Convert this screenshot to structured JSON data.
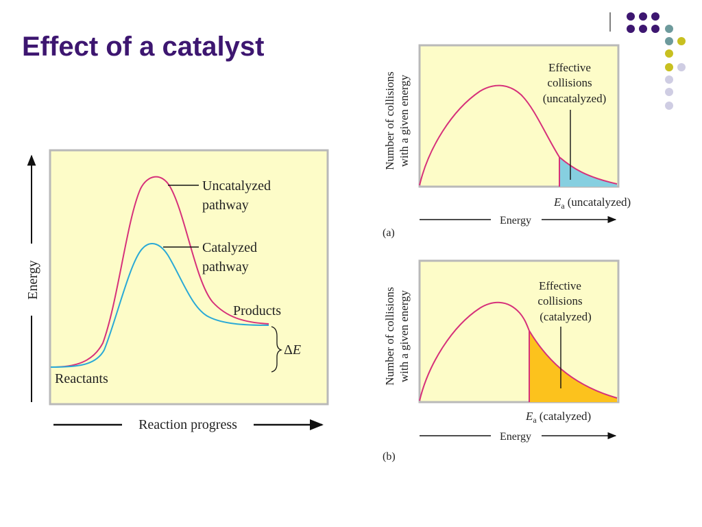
{
  "slide": {
    "title": "Effect of a catalyst",
    "accent_color": "#3d1670",
    "background": "#ffffff"
  },
  "decoration": {
    "dot_colors": [
      "#3d1670",
      "#6d9a9c",
      "#c8c020",
      "#cfcde3"
    ]
  },
  "energy_diagram": {
    "y_axis_label": "Energy",
    "x_axis_label": "Reaction progress",
    "uncatalyzed_label_line1": "Uncatalyzed",
    "uncatalyzed_label_line2": "pathway",
    "catalyzed_label_line1": "Catalyzed",
    "catalyzed_label_line2": "pathway",
    "products_label": "Products",
    "reactants_label": "Reactants",
    "delta_e_symbol": "Δ",
    "delta_e_var": "E",
    "colors": {
      "panel_bg": "#fdfcc8",
      "uncatalyzed": "#d6307a",
      "catalyzed": "#2aa9d6"
    }
  },
  "panel_a": {
    "y_axis_label_line1": "Number of collisions",
    "y_axis_label_line2": "with a given energy",
    "effective_line1": "Effective",
    "effective_line2": "collisions",
    "effective_line3": "(uncatalyzed)",
    "ea_symbol": "E",
    "ea_subscript": "a",
    "ea_condition": "(uncatalyzed)",
    "x_axis_label": "Energy",
    "caption": "(a)",
    "fill_color": "#86cfe0"
  },
  "panel_b": {
    "y_axis_label_line1": "Number of collisions",
    "y_axis_label_line2": "with a given energy",
    "effective_line1": "Effective",
    "effective_line2": "collisions",
    "effective_line3": "(catalyzed)",
    "ea_symbol": "E",
    "ea_subscript": "a",
    "ea_condition": "(catalyzed)",
    "x_axis_label": "Energy",
    "caption": "(b)",
    "fill_color": "#fcc21d"
  }
}
